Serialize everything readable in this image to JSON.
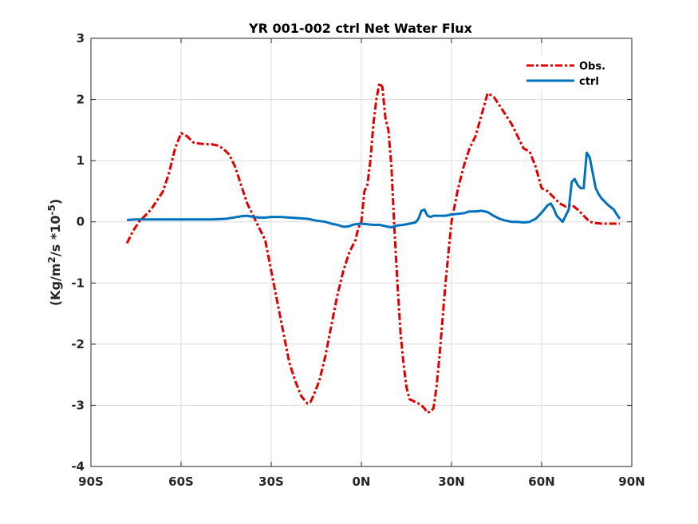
{
  "chart_data": {
    "type": "line",
    "title": "YR 001-002 ctrl  Net Water Flux",
    "xlabel": "",
    "ylabel_html": "(Kg/m²/s *10⁻⁵)",
    "ylabel": {
      "pre": "(Kg/m",
      "sup1": "2",
      "mid": "/s *10",
      "sup2": "-5",
      "post": ")"
    },
    "xlim": [
      -90,
      90
    ],
    "ylim": [
      -4,
      3
    ],
    "xticks": [
      -90,
      -60,
      -30,
      0,
      30,
      60,
      90
    ],
    "xtick_labels": [
      "90S",
      "60S",
      "30S",
      "0N",
      "30N",
      "60N",
      "90N"
    ],
    "yticks": [
      -4,
      -3,
      -2,
      -1,
      0,
      1,
      2,
      3
    ],
    "ytick_labels": [
      "-4",
      "-3",
      "-2",
      "-1",
      "0",
      "1",
      "2",
      "3"
    ],
    "grid": true,
    "legend_position": "top-right",
    "series": [
      {
        "name": "Obs.",
        "color": "#e00000",
        "style": "dashed",
        "x": [
          -78,
          -76,
          -74,
          -72,
          -70,
          -68,
          -66,
          -64,
          -62,
          -60,
          -58,
          -56,
          -54,
          -52,
          -50,
          -48,
          -46,
          -44,
          -42,
          -40,
          -38,
          -36,
          -34,
          -32,
          -30,
          -28,
          -26,
          -24,
          -22,
          -20,
          -18,
          -17,
          -16,
          -14,
          -12,
          -10,
          -8,
          -6,
          -4,
          -2,
          -1,
          0,
          1,
          2,
          3,
          4,
          5,
          6,
          7,
          8,
          9,
          10,
          11,
          12,
          13,
          14,
          15,
          16,
          17,
          18,
          19,
          20,
          21,
          22,
          23,
          24,
          25,
          26,
          27,
          28,
          29,
          30,
          32,
          34,
          36,
          38,
          40,
          42,
          44,
          46,
          48,
          50,
          52,
          54,
          56,
          58,
          60,
          62,
          64,
          66,
          68,
          70,
          72,
          74,
          76,
          78,
          80,
          82,
          84,
          86
        ],
        "y": [
          -0.35,
          -0.15,
          0.0,
          0.1,
          0.2,
          0.35,
          0.5,
          0.8,
          1.2,
          1.45,
          1.4,
          1.3,
          1.28,
          1.27,
          1.27,
          1.25,
          1.2,
          1.1,
          0.9,
          0.6,
          0.3,
          0.1,
          -0.1,
          -0.3,
          -0.8,
          -1.3,
          -1.8,
          -2.3,
          -2.6,
          -2.85,
          -2.97,
          -2.95,
          -2.85,
          -2.6,
          -2.2,
          -1.7,
          -1.2,
          -0.8,
          -0.5,
          -0.3,
          -0.1,
          0.0,
          0.5,
          0.6,
          1.0,
          1.6,
          2.0,
          2.27,
          2.2,
          1.7,
          1.5,
          0.9,
          -0.1,
          -1.0,
          -1.8,
          -2.3,
          -2.7,
          -2.9,
          -2.92,
          -2.95,
          -2.97,
          -3.0,
          -3.05,
          -3.12,
          -3.1,
          -3.05,
          -2.7,
          -2.2,
          -1.6,
          -1.0,
          -0.5,
          0.0,
          0.5,
          0.9,
          1.2,
          1.4,
          1.75,
          2.1,
          2.05,
          1.9,
          1.75,
          1.6,
          1.4,
          1.2,
          1.15,
          0.9,
          0.55,
          0.5,
          0.4,
          0.3,
          0.25,
          0.28,
          0.2,
          0.1,
          0.0,
          -0.02,
          -0.03,
          -0.03,
          -0.03,
          -0.03
        ]
      },
      {
        "name": "ctrl",
        "color": "#0072bd",
        "style": "solid",
        "x": [
          -78,
          -75,
          -72,
          -69,
          -66,
          -63,
          -60,
          -55,
          -50,
          -45,
          -40,
          -38,
          -36,
          -34,
          -32,
          -30,
          -27,
          -24,
          -21,
          -18,
          -15,
          -12,
          -10,
          -8,
          -6,
          -5,
          -4,
          -3,
          -2,
          0,
          2,
          4,
          6,
          8,
          10,
          12,
          14,
          16,
          18,
          19,
          20,
          21,
          22,
          23,
          24,
          26,
          28,
          30,
          32,
          34,
          36,
          38,
          40,
          42,
          44,
          46,
          48,
          50,
          52,
          54,
          56,
          58,
          60,
          62,
          63,
          64,
          65,
          66,
          67,
          68,
          69,
          70,
          71,
          72,
          73,
          74,
          75,
          76,
          77,
          78,
          79,
          80,
          82,
          84,
          86
        ],
        "y": [
          0.03,
          0.04,
          0.04,
          0.04,
          0.04,
          0.04,
          0.04,
          0.04,
          0.04,
          0.05,
          0.09,
          0.1,
          0.08,
          0.07,
          0.07,
          0.08,
          0.08,
          0.07,
          0.06,
          0.05,
          0.02,
          0.0,
          -0.03,
          -0.05,
          -0.08,
          -0.08,
          -0.07,
          -0.05,
          -0.04,
          -0.03,
          -0.04,
          -0.05,
          -0.05,
          -0.07,
          -0.09,
          -0.06,
          -0.05,
          -0.03,
          -0.01,
          0.05,
          0.18,
          0.2,
          0.1,
          0.08,
          0.1,
          0.1,
          0.1,
          0.12,
          0.13,
          0.14,
          0.17,
          0.17,
          0.18,
          0.16,
          0.1,
          0.05,
          0.02,
          0.0,
          0.0,
          -0.01,
          0.0,
          0.05,
          0.15,
          0.27,
          0.3,
          0.22,
          0.1,
          0.05,
          0.0,
          0.1,
          0.2,
          0.65,
          0.7,
          0.6,
          0.55,
          0.55,
          1.13,
          1.05,
          0.8,
          0.55,
          0.45,
          0.38,
          0.28,
          0.2,
          0.05
        ]
      }
    ]
  }
}
